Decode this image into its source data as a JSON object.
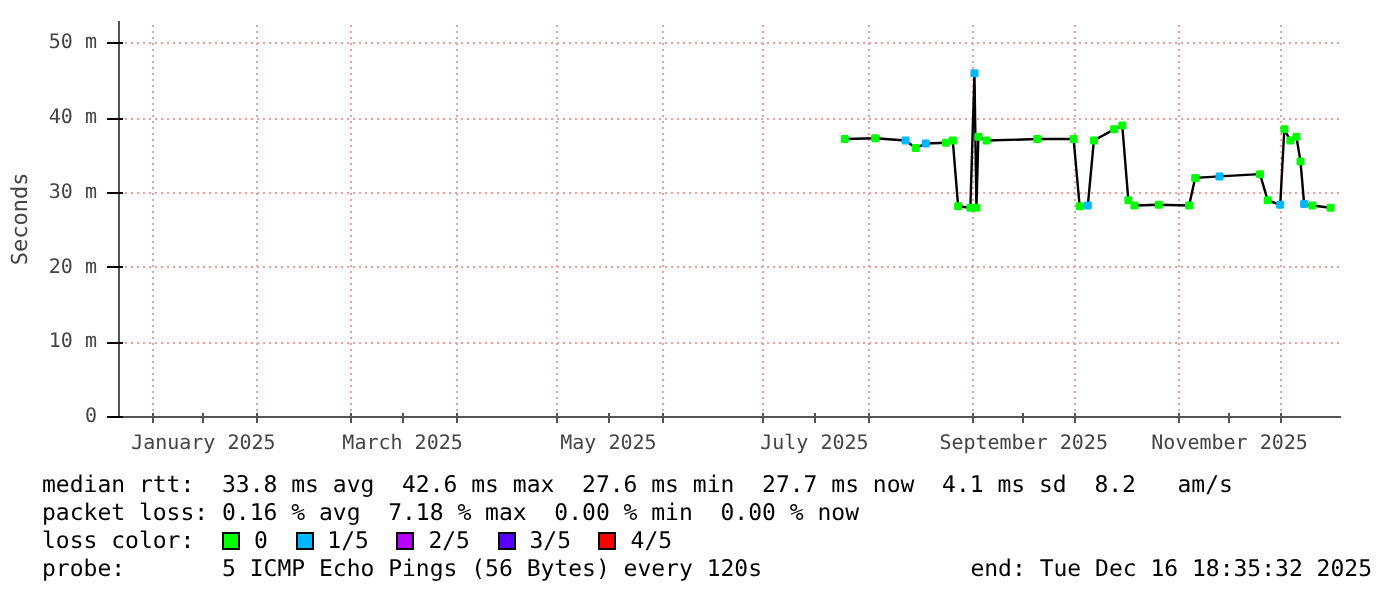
{
  "chart_data": {
    "type": "line",
    "ylabel": "Seconds",
    "legend_title": "loss color:",
    "legend": "bottom",
    "grid": true,
    "marker": "none",
    "line_style": "solid",
    "xlim": [
      "2024-12-22",
      "2025-12-19"
    ],
    "xticks": [
      {
        "value": "2025-01-01",
        "label": null
      },
      {
        "value": "2025-01-16",
        "label": "January 2025"
      },
      {
        "value": "2025-02-01",
        "label": null
      },
      {
        "value": "2025-03-01",
        "label": null
      },
      {
        "value": "2025-03-16",
        "label": "March 2025"
      },
      {
        "value": "2025-04-01",
        "label": null
      },
      {
        "value": "2025-05-01",
        "label": null
      },
      {
        "value": "2025-05-16",
        "label": "May 2025"
      },
      {
        "value": "2025-06-01",
        "label": null
      },
      {
        "value": "2025-07-01",
        "label": null
      },
      {
        "value": "2025-07-16",
        "label": "July 2025"
      },
      {
        "value": "2025-08-01",
        "label": null
      },
      {
        "value": "2025-09-01",
        "label": null
      },
      {
        "value": "2025-09-16",
        "label": "September 2025"
      },
      {
        "value": "2025-10-01",
        "label": null
      },
      {
        "value": "2025-11-01",
        "label": null
      },
      {
        "value": "2025-11-16",
        "label": "November 2025"
      },
      {
        "value": "2025-12-01",
        "label": null
      }
    ],
    "ylim": [
      0,
      53
    ],
    "yticks": [
      0,
      {
        "value": 10,
        "label": "10 m"
      },
      {
        "value": 20,
        "label": "20 m"
      },
      {
        "value": 30,
        "label": "30 m"
      },
      {
        "value": 40,
        "label": "40 m"
      },
      {
        "value": 50,
        "label": "50 m"
      }
    ],
    "x": [
      "2025-07-25",
      "2025-08-03",
      "2025-08-12",
      "2025-08-15",
      "2025-08-18",
      "2025-08-24",
      "2025-08-26",
      "2025-08-27T14:00",
      "2025-08-31T05:00",
      "2025-09-01T10:00",
      "2025-09-02",
      "2025-09-02T14:00",
      "2025-09-05",
      "2025-09-20",
      "2025-09-30T19:00",
      "2025-10-02T14:00",
      "2025-10-05",
      "2025-10-06T19:00",
      "2025-10-12T19:00",
      "2025-10-15T05:00",
      "2025-10-17",
      "2025-10-18T19:00",
      "2025-10-26",
      "2025-11-04",
      "2025-11-05T19:00",
      "2025-11-13",
      "2025-11-25",
      "2025-11-27T07:00",
      "2025-12-01",
      "2025-12-02T05:00",
      "2025-12-04",
      "2025-12-05T19:00",
      "2025-12-07",
      "2025-12-08T02:00",
      "2025-12-10T12:00",
      "2025-12-15T22:00"
    ],
    "series": [
      {
        "color": "#000000",
        "values": [
          37.2,
          37.3,
          37.0,
          36.0,
          36.6,
          36.7,
          37.0,
          28.2,
          28.0,
          46.0,
          28.0,
          37.5,
          37.0,
          37.2,
          37.2,
          28.2,
          28.3,
          37.0,
          38.5,
          39.0,
          29.0,
          28.3,
          28.4,
          28.3,
          32.0,
          32.2,
          32.5,
          29.0,
          28.4,
          38.5,
          37.0,
          37.5,
          34.2,
          28.5,
          28.3,
          28.0
        ]
      },
      {
        "type": "scatter",
        "name": "0",
        "color": "#00ff00",
        "marker": "square",
        "values": [
          37.2,
          37.3,
          null,
          36.0,
          null,
          36.7,
          37.0,
          28.2,
          28.0,
          null,
          28.0,
          37.5,
          37.0,
          37.2,
          37.2,
          28.2,
          null,
          37.0,
          38.5,
          39.0,
          29.0,
          28.3,
          28.4,
          28.3,
          32.0,
          null,
          32.5,
          29.0,
          null,
          38.5,
          37.0,
          37.5,
          34.2,
          null,
          28.3,
          28.0
        ]
      },
      {
        "type": "scatter",
        "name": "1/5",
        "color": "#00b8ff",
        "marker": "square",
        "values": [
          null,
          null,
          37.0,
          null,
          36.6,
          null,
          null,
          null,
          null,
          46.0,
          null,
          null,
          null,
          null,
          null,
          null,
          28.3,
          null,
          null,
          null,
          null,
          null,
          null,
          null,
          null,
          32.2,
          null,
          null,
          28.4,
          null,
          null,
          null,
          null,
          28.5,
          null,
          null
        ]
      },
      {
        "type": "scatter",
        "name": "2/5",
        "color": "#b800ff",
        "marker": "square",
        "values": [
          null,
          null,
          null,
          null,
          null,
          null,
          null,
          null,
          null,
          null,
          null,
          null,
          null,
          null,
          null,
          null,
          null,
          null,
          null,
          null,
          null,
          null,
          null,
          null,
          null,
          null,
          null,
          null,
          null,
          null,
          null,
          null,
          null,
          null,
          null,
          null
        ]
      },
      {
        "type": "scatter",
        "name": "3/5",
        "color": "#5a00ff",
        "marker": "square",
        "values": [
          null,
          null,
          null,
          null,
          null,
          null,
          null,
          null,
          null,
          null,
          null,
          null,
          null,
          null,
          null,
          null,
          null,
          null,
          null,
          null,
          null,
          null,
          null,
          null,
          null,
          null,
          null,
          null,
          null,
          null,
          null,
          null,
          null,
          null,
          null,
          null
        ]
      },
      {
        "type": "scatter",
        "name": "4/5",
        "color": "#ff0000",
        "marker": "square",
        "values": [
          null,
          null,
          null,
          null,
          null,
          null,
          null,
          null,
          null,
          null,
          null,
          null,
          null,
          null,
          null,
          null,
          null,
          null,
          null,
          null,
          null,
          null,
          null,
          null,
          null,
          null,
          null,
          null,
          null,
          null,
          null,
          null,
          null,
          null,
          null,
          null
        ]
      }
    ],
    "annotations": [
      "median rtt:  33.8 ms avg  42.6 ms max  27.6 ms min  27.7 ms now  4.1 ms sd  8.2   am/s",
      "packet loss: 0.16 % avg  7.18 % max  0.00 % min  0.00 % now",
      "probe:       5 ICMP Echo Pings (56 Bytes) every 120s",
      "end: Tue Dec 16 18:35:32 2025"
    ]
  }
}
